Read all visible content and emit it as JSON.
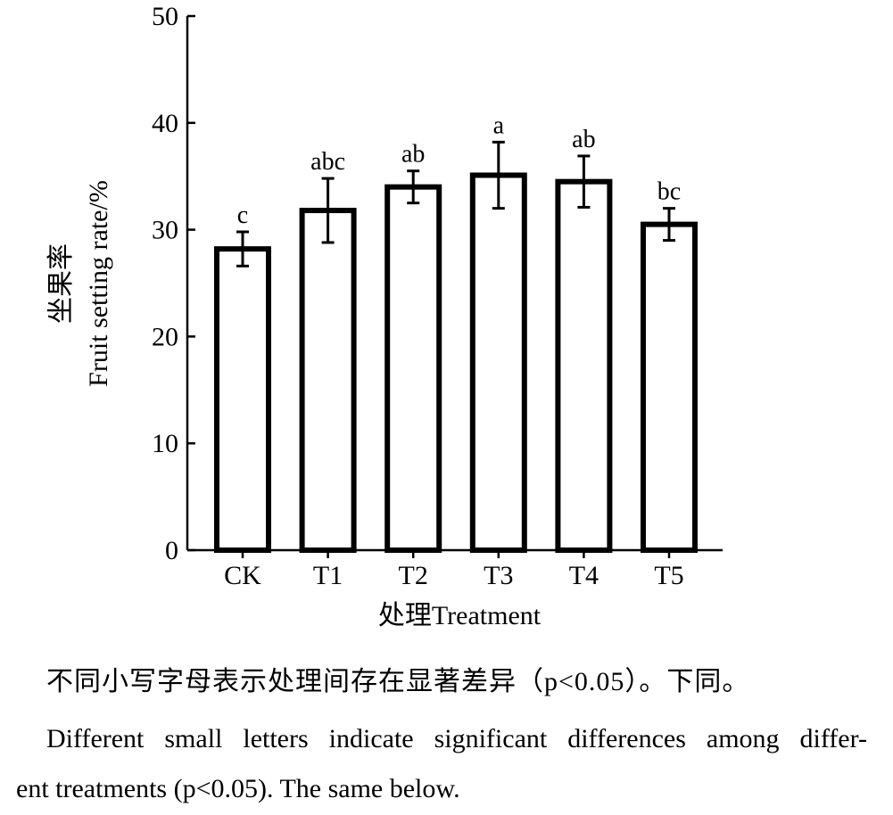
{
  "chart_data": {
    "type": "bar",
    "categories": [
      "CK",
      "T1",
      "T2",
      "T3",
      "T4",
      "T5"
    ],
    "values": [
      28.2,
      31.8,
      34.0,
      35.1,
      34.5,
      30.5
    ],
    "errors": [
      1.6,
      3.0,
      1.5,
      3.1,
      2.4,
      1.5
    ],
    "significance": [
      "c",
      "abc",
      "ab",
      "a",
      "ab",
      "bc"
    ],
    "ylim": [
      0,
      50
    ],
    "yticks": [
      0,
      10,
      20,
      30,
      40,
      50
    ],
    "xlabel": "处理Treatment",
    "ylabel_cn": "坐果率",
    "ylabel_en": "Fruit setting rate/%",
    "grid": false
  },
  "caption": {
    "cn": "不同小写字母表示处理间存在显著差异（p<0.05）。下同。",
    "en_line1": "Different small letters indicate significant differences among differ-",
    "en_line2": "ent treatments (p<0.05). The same below."
  }
}
